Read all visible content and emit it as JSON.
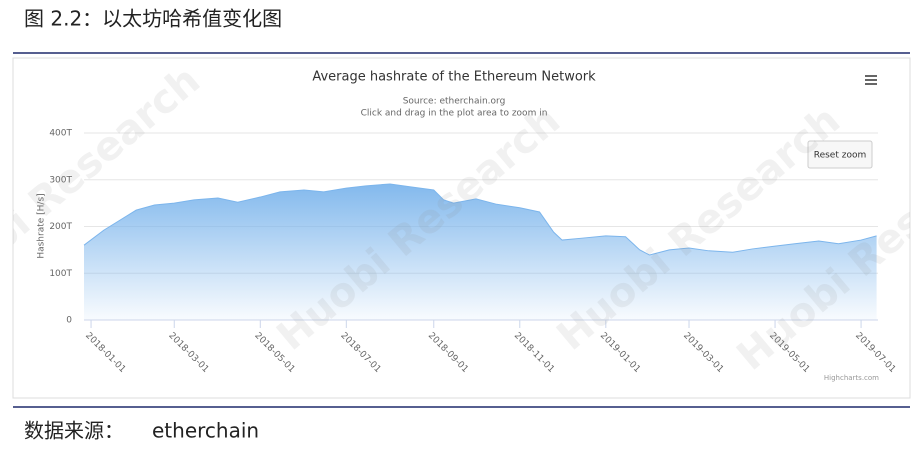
{
  "header": {
    "title": "图 2.2：以太坊哈希值变化图"
  },
  "footer": {
    "label": "数据来源：",
    "source": "etherchain"
  },
  "watermark": "Huobi Research",
  "chart_data": {
    "type": "area",
    "title": "Average hashrate of the Ethereum Network",
    "subtitle": "Source: etherchain.org",
    "note": "Click and drag in the plot area to zoom in",
    "button": "Reset zoom",
    "credits": "Highcharts.com",
    "y_label": "Hashrate [H/s]",
    "color": "#7cb5ec",
    "grid": true,
    "xlim": [
      "2017-12-27",
      "2019-07-13"
    ],
    "xticks": [
      "2018-01-01",
      "2018-03-01",
      "2018-05-01",
      "2018-07-01",
      "2018-09-01",
      "2018-11-01",
      "2019-01-01",
      "2019-03-01",
      "2019-05-01",
      "2019-07-01"
    ],
    "ylim": [
      0,
      400
    ],
    "yticks": [
      0,
      {
        "value": 100,
        "label": "100T"
      },
      {
        "value": 200,
        "label": "200T"
      },
      {
        "value": 300,
        "label": "300T"
      },
      {
        "value": 400,
        "label": "400T"
      }
    ],
    "x": [
      "2017-12-27",
      "2018-01-10",
      "2018-02-02",
      "2018-02-15",
      "2018-03-01",
      "2018-03-15",
      "2018-04-01",
      "2018-04-15",
      "2018-05-01",
      "2018-05-15",
      "2018-06-01",
      "2018-06-15",
      "2018-07-01",
      "2018-07-15",
      "2018-08-01",
      "2018-08-15",
      "2018-09-01",
      "2018-09-08",
      "2018-09-15",
      "2018-10-01",
      "2018-10-15",
      "2018-11-01",
      "2018-11-15",
      "2018-11-25",
      "2018-12-01",
      "2018-12-15",
      "2019-01-01",
      "2019-01-15",
      "2019-01-25",
      "2019-02-01",
      "2019-02-15",
      "2019-03-01",
      "2019-03-15",
      "2019-04-01",
      "2019-04-15",
      "2019-05-01",
      "2019-05-15",
      "2019-06-01",
      "2019-06-15",
      "2019-07-01",
      "2019-07-12"
    ],
    "values": [
      160,
      192,
      235,
      246,
      250,
      257,
      261,
      252,
      263,
      274,
      278,
      274,
      282,
      287,
      291,
      285,
      278,
      257,
      250,
      259,
      248,
      240,
      231,
      188,
      171,
      175,
      180,
      178,
      150,
      139,
      150,
      154,
      148,
      145,
      152,
      158,
      163,
      169,
      163,
      171,
      180
    ]
  }
}
